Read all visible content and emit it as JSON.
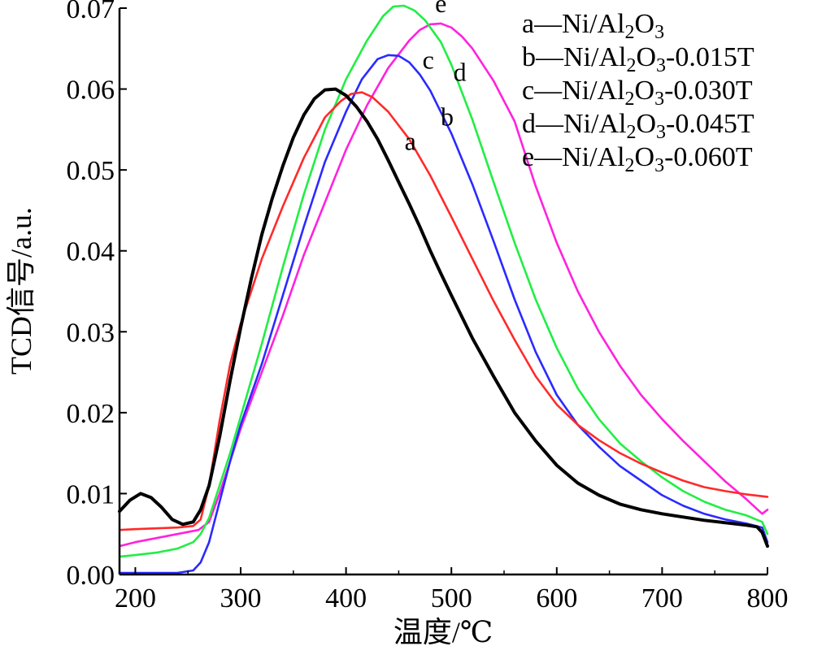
{
  "chart_data": {
    "type": "line",
    "xlabel": "温度/℃",
    "ylabel": "TCD信号/a.u.",
    "xlim": [
      185,
      800
    ],
    "ylim": [
      0,
      0.07
    ],
    "xticks": [
      200,
      300,
      400,
      500,
      600,
      700,
      800
    ],
    "xtick_labels": [
      "200",
      "300",
      "400",
      "500",
      "600",
      "700",
      "800"
    ],
    "yticks": [
      0,
      0.01,
      0.02,
      0.03,
      0.04,
      0.05,
      0.06,
      0.07
    ],
    "ytick_labels": [
      "0.00",
      "0.01",
      "0.02",
      "0.03",
      "0.04",
      "0.05",
      "0.06",
      "0.07"
    ],
    "grid": false,
    "legend_position": "top-right",
    "series": [
      {
        "id": "a",
        "name": "a—Ni/Al₂O₃",
        "label": "a",
        "color": "#000000",
        "x": [
          185,
          195,
          205,
          215,
          225,
          235,
          245,
          255,
          262,
          270,
          280,
          290,
          300,
          310,
          320,
          330,
          340,
          350,
          360,
          370,
          380,
          390,
          400,
          410,
          420,
          430,
          440,
          450,
          460,
          470,
          480,
          490,
          500,
          520,
          540,
          560,
          580,
          600,
          620,
          640,
          660,
          680,
          700,
          720,
          740,
          760,
          780,
          790,
          795,
          800
        ],
        "y": [
          0.0078,
          0.0092,
          0.01,
          0.0095,
          0.0083,
          0.0068,
          0.0062,
          0.0065,
          0.008,
          0.011,
          0.017,
          0.024,
          0.0305,
          0.0365,
          0.042,
          0.0465,
          0.0505,
          0.054,
          0.0568,
          0.0588,
          0.0599,
          0.06,
          0.0592,
          0.0578,
          0.056,
          0.0538,
          0.0512,
          0.0485,
          0.0458,
          0.043,
          0.04,
          0.0372,
          0.0345,
          0.0292,
          0.0245,
          0.02,
          0.0165,
          0.0135,
          0.0113,
          0.0098,
          0.0087,
          0.008,
          0.0075,
          0.0071,
          0.0067,
          0.0064,
          0.0061,
          0.0059,
          0.0052,
          0.0035
        ]
      },
      {
        "id": "b",
        "name": "b—Ni/Al₂O₃-0.015T",
        "label": "b",
        "color": "#ff2a2a",
        "x": [
          185,
          200,
          220,
          240,
          255,
          262,
          270,
          280,
          290,
          300,
          320,
          340,
          360,
          380,
          395,
          405,
          415,
          425,
          440,
          460,
          480,
          500,
          520,
          540,
          560,
          580,
          600,
          620,
          640,
          660,
          680,
          700,
          720,
          740,
          760,
          780,
          800
        ],
        "y": [
          0.0055,
          0.0056,
          0.0057,
          0.0058,
          0.006,
          0.0068,
          0.011,
          0.019,
          0.026,
          0.031,
          0.039,
          0.0455,
          0.0515,
          0.0565,
          0.0585,
          0.0594,
          0.0596,
          0.059,
          0.0572,
          0.0538,
          0.0493,
          0.0442,
          0.039,
          0.0338,
          0.029,
          0.0245,
          0.021,
          0.0185,
          0.0166,
          0.015,
          0.0137,
          0.0126,
          0.0116,
          0.0108,
          0.0103,
          0.0099,
          0.0096
        ]
      },
      {
        "id": "c",
        "name": "c—Ni/Al₂O₃-0.030T",
        "label": "c",
        "color": "#2a2aff",
        "x": [
          185,
          200,
          220,
          240,
          255,
          262,
          270,
          280,
          290,
          300,
          320,
          340,
          360,
          380,
          400,
          415,
          430,
          440,
          450,
          460,
          470,
          480,
          500,
          520,
          540,
          560,
          580,
          600,
          620,
          640,
          660,
          680,
          700,
          720,
          740,
          760,
          780,
          795,
          800
        ],
        "y": [
          0.0002,
          0.0002,
          0.0002,
          0.0002,
          0.0005,
          0.0015,
          0.004,
          0.009,
          0.014,
          0.0185,
          0.026,
          0.0345,
          0.043,
          0.051,
          0.0572,
          0.0612,
          0.0637,
          0.0642,
          0.0641,
          0.0633,
          0.0618,
          0.0598,
          0.0545,
          0.0482,
          0.0412,
          0.034,
          0.0275,
          0.0222,
          0.0185,
          0.0158,
          0.0134,
          0.0116,
          0.0098,
          0.0085,
          0.0075,
          0.0068,
          0.0063,
          0.0058,
          0.004
        ]
      },
      {
        "id": "d",
        "name": "d—Ni/Al₂O₃-0.045T",
        "label": "d",
        "color": "#ff22dd",
        "x": [
          185,
          200,
          220,
          240,
          260,
          270,
          280,
          290,
          300,
          320,
          340,
          360,
          380,
          400,
          420,
          440,
          460,
          470,
          480,
          490,
          500,
          510,
          520,
          540,
          560,
          580,
          600,
          620,
          640,
          660,
          680,
          700,
          720,
          740,
          760,
          780,
          795,
          800
        ],
        "y": [
          0.0035,
          0.004,
          0.0045,
          0.005,
          0.0055,
          0.0065,
          0.01,
          0.014,
          0.018,
          0.025,
          0.032,
          0.0395,
          0.046,
          0.0525,
          0.058,
          0.0626,
          0.066,
          0.0673,
          0.068,
          0.0681,
          0.0676,
          0.0665,
          0.065,
          0.061,
          0.056,
          0.048,
          0.041,
          0.035,
          0.03,
          0.0258,
          0.0222,
          0.0192,
          0.0165,
          0.014,
          0.0115,
          0.0093,
          0.0075,
          0.008
        ]
      },
      {
        "id": "e",
        "name": "e—Ni/Al₂O₃-0.060T",
        "label": "e",
        "color": "#22ee44",
        "x": [
          185,
          200,
          220,
          240,
          255,
          262,
          270,
          280,
          290,
          300,
          320,
          340,
          360,
          380,
          400,
          420,
          435,
          445,
          455,
          465,
          475,
          490,
          500,
          520,
          540,
          560,
          580,
          600,
          620,
          640,
          660,
          680,
          700,
          720,
          740,
          760,
          780,
          795,
          800
        ],
        "y": [
          0.0022,
          0.0024,
          0.0027,
          0.0032,
          0.004,
          0.005,
          0.007,
          0.011,
          0.015,
          0.0195,
          0.0285,
          0.038,
          0.047,
          0.055,
          0.0612,
          0.066,
          0.069,
          0.0702,
          0.0703,
          0.0697,
          0.0685,
          0.0658,
          0.063,
          0.0562,
          0.0485,
          0.041,
          0.034,
          0.028,
          0.023,
          0.0192,
          0.0162,
          0.014,
          0.012,
          0.0103,
          0.009,
          0.008,
          0.0073,
          0.0065,
          0.005
        ]
      }
    ],
    "curve_labels": [
      {
        "text": "a",
        "x": 461,
        "y": 0.0525
      },
      {
        "text": "b",
        "x": 496,
        "y": 0.0555
      },
      {
        "text": "c",
        "x": 478,
        "y": 0.0625
      },
      {
        "text": "d",
        "x": 508,
        "y": 0.061
      },
      {
        "text": "e",
        "x": 490,
        "y": 0.0695
      }
    ]
  },
  "legend": [
    {
      "prefix": "a—Ni/Al",
      "sub": "2",
      "mid": "O",
      "sub2": "3",
      "suffix": ""
    },
    {
      "prefix": "b—Ni/Al",
      "sub": "2",
      "mid": "O",
      "sub2": "3",
      "suffix": "-0.015T"
    },
    {
      "prefix": "c—Ni/Al",
      "sub": "2",
      "mid": "O",
      "sub2": "3",
      "suffix": "-0.030T"
    },
    {
      "prefix": "d—Ni/Al",
      "sub": "2",
      "mid": "O",
      "sub2": "3",
      "suffix": "-0.045T"
    },
    {
      "prefix": "e—Ni/Al",
      "sub": "2",
      "mid": "O",
      "sub2": "3",
      "suffix": "-0.060T"
    }
  ]
}
